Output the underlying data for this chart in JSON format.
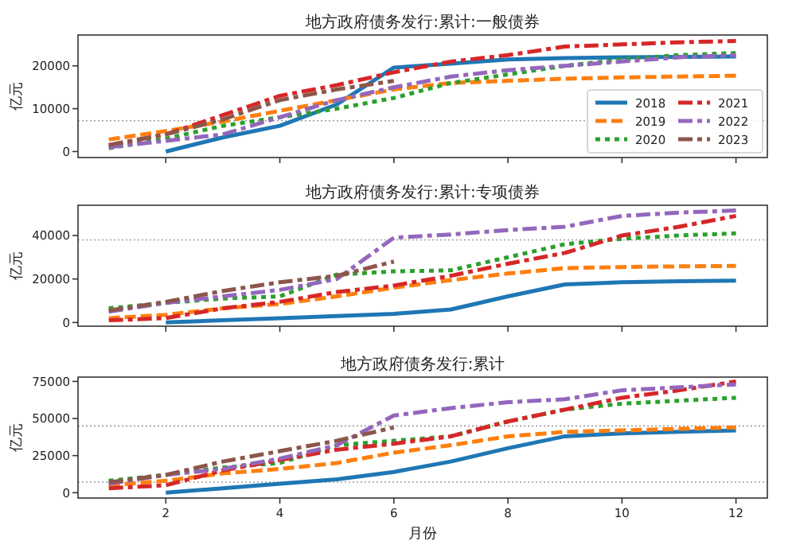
{
  "chart_data": [
    {
      "type": "line",
      "title": "地方政府债务发行:累计:一般债券",
      "ylabel": "亿元",
      "x": [
        1,
        2,
        3,
        4,
        5,
        6,
        7,
        8,
        9,
        10,
        11,
        12
      ],
      "xlim": [
        0.46,
        12.55
      ],
      "xticks": [
        2,
        4,
        6,
        8,
        10,
        12
      ],
      "ylim": [
        -1400,
        27200
      ],
      "yticks": [
        0,
        10000,
        20000
      ],
      "tick_labels": "y",
      "grid": false,
      "legend": "bottom right",
      "ref_lines": [
        {
          "axis": "y",
          "value": 7200,
          "color": "#a0a0a0",
          "line_style": "dotted"
        }
      ],
      "series": [
        {
          "name": "2018",
          "color": "#1f77b4",
          "line_style": "solid",
          "values": [
            null,
            0,
            3300,
            6000,
            11000,
            19600,
            20500,
            21500,
            21800,
            22000,
            22100,
            22200
          ]
        },
        {
          "name": "2019",
          "color": "#ff7f0e",
          "line_style": "dashed",
          "values": [
            2800,
            4800,
            7000,
            9500,
            12000,
            14500,
            16000,
            16500,
            17000,
            17300,
            17500,
            17700
          ]
        },
        {
          "name": "2020",
          "color": "#2ca02c",
          "line_style": "dotted",
          "values": [
            800,
            3000,
            6000,
            8000,
            10000,
            12500,
            16000,
            18000,
            20000,
            21500,
            22500,
            23000
          ]
        },
        {
          "name": "2021",
          "color": "#d62728",
          "line_style": "dashdot",
          "values": [
            1500,
            4000,
            8500,
            13000,
            15500,
            18500,
            21000,
            22500,
            24500,
            25000,
            25500,
            25800
          ]
        },
        {
          "name": "2022",
          "color": "#9467bd",
          "line_style": "dashdot",
          "values": [
            1000,
            2500,
            4000,
            8000,
            12000,
            15000,
            17500,
            19000,
            20000,
            21000,
            22000,
            22500
          ]
        },
        {
          "name": "2023",
          "color": "#8c564b",
          "line_style": "dashdot",
          "values": [
            1500,
            4000,
            7500,
            12000,
            14500,
            16500,
            null,
            null,
            null,
            null,
            null,
            null
          ]
        }
      ]
    },
    {
      "type": "line",
      "title": "地方政府债务发行:累计:专项债券",
      "ylabel": "亿元",
      "x": [
        1,
        2,
        3,
        4,
        5,
        6,
        7,
        8,
        9,
        10,
        11,
        12
      ],
      "xlim": [
        0.46,
        12.55
      ],
      "xticks": [
        2,
        4,
        6,
        8,
        10,
        12
      ],
      "ylim": [
        -1700,
        53900
      ],
      "yticks": [
        0,
        20000,
        40000
      ],
      "tick_labels": "y",
      "grid": false,
      "ref_lines": [
        {
          "axis": "y",
          "value": 38000,
          "color": "#a0a0a0",
          "line_style": "dotted"
        }
      ],
      "series": [
        {
          "color": "#1f77b4",
          "line_style": "solid",
          "values": [
            null,
            0,
            1000,
            2000,
            3000,
            4000,
            6000,
            12000,
            17500,
            18500,
            19000,
            19200
          ]
        },
        {
          "color": "#ff7f0e",
          "line_style": "dashed",
          "values": [
            2000,
            3500,
            6500,
            8500,
            12000,
            16000,
            19500,
            22500,
            25000,
            25500,
            25800,
            26000
          ]
        },
        {
          "color": "#2ca02c",
          "line_style": "dotted",
          "values": [
            6500,
            9000,
            11000,
            12000,
            22000,
            23500,
            24000,
            30000,
            36000,
            38500,
            40000,
            41000
          ]
        },
        {
          "color": "#d62728",
          "line_style": "dashdot",
          "values": [
            1000,
            2000,
            6500,
            9500,
            14000,
            17000,
            21500,
            27000,
            32000,
            40000,
            44000,
            49000
          ]
        },
        {
          "color": "#9467bd",
          "line_style": "dashdot",
          "values": [
            5000,
            9000,
            12000,
            15000,
            20000,
            39000,
            40500,
            42500,
            44000,
            49000,
            50500,
            51500
          ]
        },
        {
          "color": "#8c564b",
          "line_style": "dashdot",
          "values": [
            5500,
            9500,
            14500,
            18500,
            21500,
            28000,
            null,
            null,
            null,
            null,
            null,
            null
          ]
        }
      ]
    },
    {
      "type": "line",
      "title": "地方政府债务发行:累计",
      "ylabel": "亿元",
      "xlabel": "月份",
      "x": [
        1,
        2,
        3,
        4,
        5,
        6,
        7,
        8,
        9,
        10,
        11,
        12
      ],
      "xlim": [
        0.46,
        12.55
      ],
      "xticks": [
        2,
        4,
        6,
        8,
        10,
        12
      ],
      "ylim": [
        -3600,
        77900
      ],
      "yticks": [
        0,
        25000,
        50000,
        75000
      ],
      "grid": false,
      "ref_lines": [
        {
          "axis": "y",
          "value": 45000,
          "color": "#a0a0a0",
          "line_style": "dotted"
        },
        {
          "axis": "y",
          "value": 7100,
          "color": "#a0a0a0",
          "line_style": "dotted"
        }
      ],
      "series": [
        {
          "color": "#1f77b4",
          "line_style": "solid",
          "values": [
            null,
            0,
            3000,
            6000,
            9000,
            14000,
            21000,
            30000,
            38000,
            40000,
            41000,
            42000
          ]
        },
        {
          "color": "#ff7f0e",
          "line_style": "dashed",
          "values": [
            5000,
            8000,
            13000,
            16000,
            20000,
            27000,
            32000,
            38000,
            41000,
            42000,
            43000,
            44000
          ]
        },
        {
          "color": "#2ca02c",
          "line_style": "dotted",
          "values": [
            8000,
            12000,
            17000,
            20000,
            32000,
            35000,
            38000,
            48000,
            56000,
            60000,
            62000,
            64000
          ]
        },
        {
          "color": "#d62728",
          "line_style": "dashdot",
          "values": [
            3000,
            5000,
            15000,
            22000,
            29000,
            33000,
            38000,
            48000,
            56000,
            64000,
            69000,
            75000
          ]
        },
        {
          "color": "#9467bd",
          "line_style": "dashdot",
          "values": [
            6000,
            12000,
            16000,
            23000,
            32000,
            52000,
            57000,
            61000,
            63000,
            69000,
            71000,
            73000
          ]
        },
        {
          "color": "#8c564b",
          "line_style": "dashdot",
          "values": [
            7000,
            12000,
            21000,
            28000,
            35000,
            44000,
            null,
            null,
            null,
            null,
            null,
            null
          ]
        }
      ]
    }
  ]
}
